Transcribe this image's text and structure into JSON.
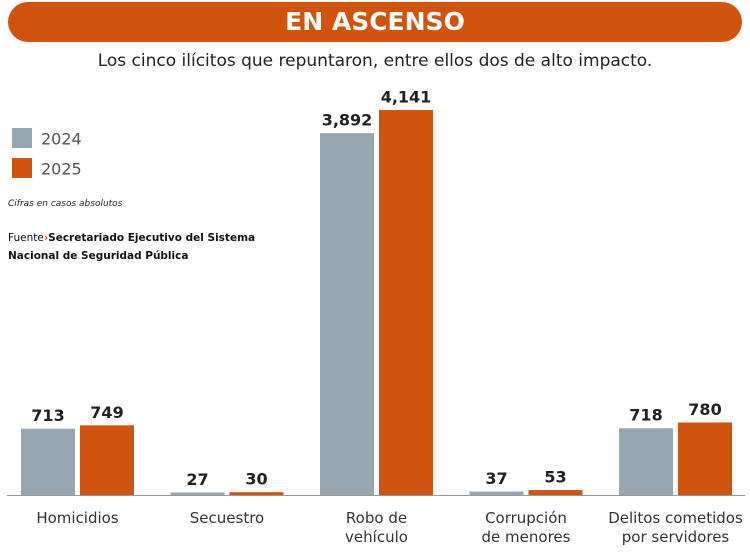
{
  "chart_data": {
    "type": "bar",
    "title": "EN ASCENSO",
    "subtitle": "Los cinco ilícitos que repuntaron, entre ellos dos de alto impacto.",
    "note": "Cifras en casos absolutos",
    "source_label": "Fuente",
    "source": "Secretariado Ejecutivo del Sistema Nacional de Seguridad Pública",
    "categories": [
      "Homicidios",
      "Secuestro",
      "Robo de\nvehículo",
      "Corrupción\nde menores",
      "Delitos cometidos\npor servidores"
    ],
    "series": [
      {
        "name": "2024",
        "color": "#97a7b0",
        "values": [
          713,
          27,
          3892,
          37,
          718
        ],
        "value_labels": [
          "713",
          "27",
          "3,892",
          "37",
          "718"
        ]
      },
      {
        "name": "2025",
        "color": "#d0530e",
        "values": [
          749,
          30,
          4141,
          53,
          780
        ],
        "value_labels": [
          "749",
          "30",
          "4,141",
          "53",
          "780"
        ]
      }
    ],
    "title_color": "#d0530e"
  }
}
